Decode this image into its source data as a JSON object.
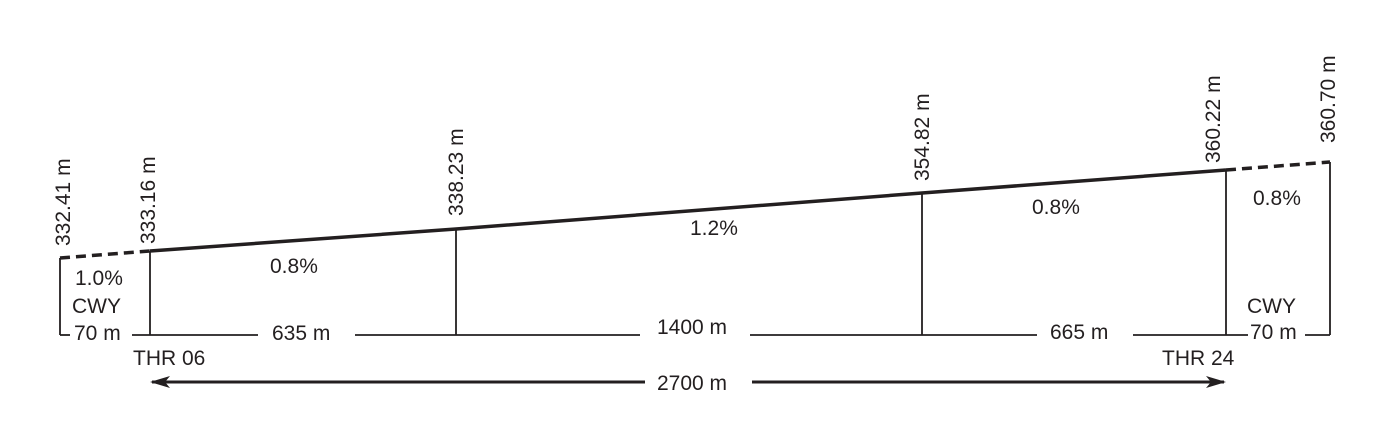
{
  "elevations": {
    "cwy_start": "332.41 m",
    "thr06": "333.16 m",
    "point1": "338.23 m",
    "point2": "354.82 m",
    "thr24": "360.22 m",
    "cwy_end": "360.70 m"
  },
  "slopes": {
    "cwy_left": "1.0%",
    "segment1": "0.8%",
    "segment2": "1.2%",
    "segment3": "0.8%",
    "cwy_right": "0.8%"
  },
  "distances": {
    "cwy_left": "70 m",
    "segment1": "635 m",
    "segment2": "1400 m",
    "segment3": "665 m",
    "cwy_right": "70 m",
    "total": "2700 m"
  },
  "labels": {
    "cwy_left": "CWY",
    "cwy_right": "CWY",
    "thr06": "THR 06",
    "thr24": "THR 24"
  },
  "colors": {
    "line": "#231f20"
  }
}
